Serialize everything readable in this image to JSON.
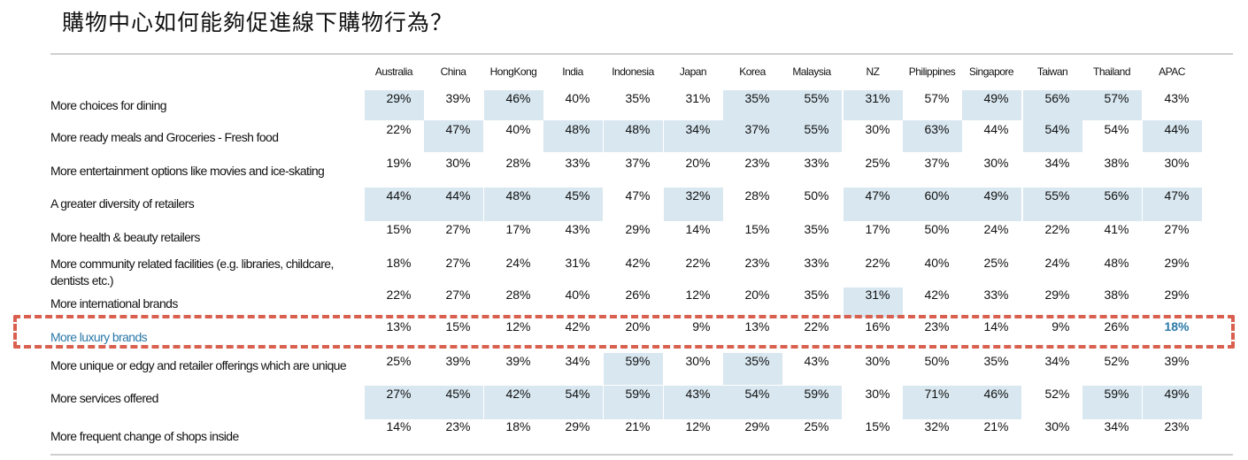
{
  "title": "購物中心如何能夠促進線下購物行為？",
  "columns": [
    "Australia",
    "China",
    "HongKong",
    "India",
    "Indonesia",
    "Japan",
    "Korea",
    "Malaysia",
    "NZ",
    "Philippines",
    "Singapore",
    "Taiwan",
    "Thailand",
    "APAC"
  ],
  "rows": [
    {
      "label": "More choices for dining",
      "values": [
        "29%",
        "39%",
        "46%",
        "40%",
        "35%",
        "31%",
        "35%",
        "55%",
        "31%",
        "57%",
        "49%",
        "56%",
        "57%",
        "43%"
      ],
      "shaded": [
        true,
        false,
        true,
        false,
        false,
        false,
        true,
        true,
        true,
        false,
        true,
        true,
        true,
        false
      ]
    },
    {
      "label": "More ready meals and Groceries - Fresh food",
      "values": [
        "22%",
        "47%",
        "40%",
        "48%",
        "48%",
        "34%",
        "37%",
        "55%",
        "30%",
        "63%",
        "44%",
        "54%",
        "54%",
        "44%"
      ],
      "shaded": [
        false,
        true,
        false,
        true,
        true,
        true,
        true,
        true,
        false,
        true,
        false,
        true,
        false,
        true
      ]
    },
    {
      "label": "More entertainment options like movies and ice-skating",
      "values": [
        "19%",
        "30%",
        "28%",
        "33%",
        "37%",
        "20%",
        "23%",
        "33%",
        "25%",
        "37%",
        "30%",
        "34%",
        "38%",
        "30%"
      ],
      "shaded": [
        false,
        false,
        false,
        false,
        false,
        false,
        false,
        false,
        false,
        false,
        false,
        false,
        false,
        false
      ]
    },
    {
      "label": "A greater diversity of retailers",
      "values": [
        "44%",
        "44%",
        "48%",
        "45%",
        "47%",
        "32%",
        "28%",
        "50%",
        "47%",
        "60%",
        "49%",
        "55%",
        "56%",
        "47%"
      ],
      "shaded": [
        true,
        true,
        true,
        true,
        false,
        true,
        false,
        false,
        true,
        true,
        true,
        true,
        true,
        true
      ]
    },
    {
      "label": "More health & beauty retailers",
      "values": [
        "15%",
        "27%",
        "17%",
        "43%",
        "29%",
        "14%",
        "15%",
        "35%",
        "17%",
        "50%",
        "24%",
        "22%",
        "41%",
        "27%"
      ],
      "shaded": [
        false,
        false,
        false,
        false,
        false,
        false,
        false,
        false,
        false,
        false,
        false,
        false,
        false,
        false
      ]
    },
    {
      "label": "More community related facilities (e.g. libraries, childcare, dentists etc.)",
      "values": [
        "18%",
        "27%",
        "24%",
        "31%",
        "42%",
        "22%",
        "23%",
        "33%",
        "22%",
        "40%",
        "25%",
        "24%",
        "48%",
        "29%"
      ],
      "shaded": [
        false,
        false,
        false,
        false,
        false,
        false,
        false,
        false,
        false,
        false,
        false,
        false,
        false,
        false
      ]
    },
    {
      "label": "More international brands",
      "values": [
        "22%",
        "27%",
        "28%",
        "40%",
        "26%",
        "12%",
        "20%",
        "35%",
        "31%",
        "42%",
        "33%",
        "29%",
        "38%",
        "29%"
      ],
      "shaded": [
        false,
        false,
        false,
        false,
        false,
        false,
        false,
        false,
        true,
        false,
        false,
        false,
        false,
        false
      ]
    },
    {
      "label": "More luxury brands",
      "values": [
        "13%",
        "15%",
        "12%",
        "42%",
        "20%",
        "9%",
        "13%",
        "22%",
        "16%",
        "23%",
        "14%",
        "9%",
        "26%",
        "18%"
      ],
      "shaded": [
        false,
        false,
        false,
        false,
        false,
        false,
        false,
        false,
        false,
        false,
        false,
        false,
        false,
        false
      ],
      "highlight": true
    },
    {
      "label": "More unique or edgy and retailer offerings which are unique",
      "values": [
        "25%",
        "39%",
        "39%",
        "34%",
        "59%",
        "30%",
        "35%",
        "43%",
        "30%",
        "50%",
        "35%",
        "34%",
        "52%",
        "39%"
      ],
      "shaded": [
        false,
        false,
        false,
        false,
        true,
        false,
        true,
        false,
        false,
        false,
        false,
        false,
        false,
        false
      ]
    },
    {
      "label": "More services offered",
      "values": [
        "27%",
        "45%",
        "42%",
        "54%",
        "59%",
        "43%",
        "54%",
        "59%",
        "30%",
        "71%",
        "46%",
        "52%",
        "59%",
        "49%"
      ],
      "shaded": [
        true,
        true,
        true,
        true,
        true,
        true,
        true,
        true,
        false,
        true,
        true,
        false,
        true,
        true
      ]
    },
    {
      "label": "More frequent change of shops inside",
      "values": [
        "14%",
        "23%",
        "18%",
        "29%",
        "21%",
        "12%",
        "29%",
        "25%",
        "15%",
        "32%",
        "21%",
        "30%",
        "34%",
        "23%"
      ],
      "shaded": [
        false,
        false,
        false,
        false,
        false,
        false,
        false,
        false,
        false,
        false,
        false,
        false,
        false,
        false
      ]
    }
  ],
  "colors": {
    "shade": "#d8e7f0",
    "highlight_text": "#2a78a8",
    "dash_box": "#d9604e"
  }
}
